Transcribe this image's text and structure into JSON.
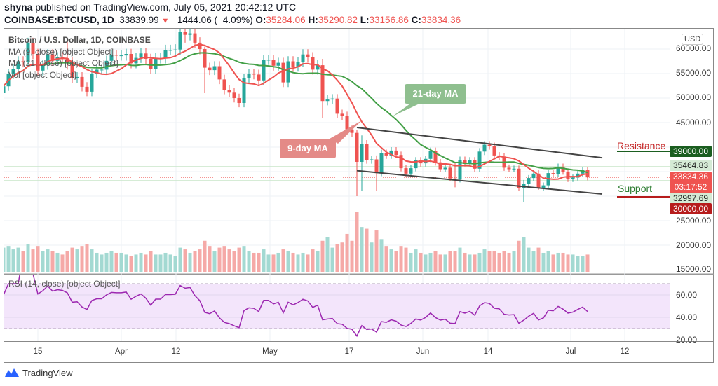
{
  "header": {
    "author": "shyna",
    "published": "published on TradingView.com, July 05, 2021 20:42:12 UTC",
    "symbol": "COINBASE:BTCUSD, 1D",
    "last": "33839.99",
    "change": "−1444.06 (−4.09%)",
    "o_label": "O:",
    "o": "35284.06",
    "h_label": "H:",
    "h": "35290.82",
    "l_label": "L:",
    "l": "33156.86",
    "c_label": "C:",
    "c": "33834.36"
  },
  "legend": {
    "title": "Bitcoin / U.S. Dollar, 1D, COINBASE",
    "ma9": "MA (9, close) [object Object]",
    "ma21": "MA (21, close) [object Object]",
    "vol": "Vol [object Object]",
    "rsi": "RSI (14, close) [object Object]"
  },
  "price_axis": {
    "unit": "USD",
    "ticks": [
      "60000.00",
      "55000.00",
      "50000.00",
      "45000.00",
      "25000.00",
      "20000.00",
      "15000.00"
    ],
    "resistance_tag": "39000.00",
    "upper_tag": "35464.83",
    "last_tag": "33834.36",
    "countdown": "03:17:52",
    "lower_tag": "32997.69",
    "support_tag": "30000.00"
  },
  "rsi_axis": {
    "ticks": [
      "60.00",
      "40.00",
      "20.00"
    ]
  },
  "time_axis": {
    "labels": [
      "15",
      "Apr",
      "12",
      "May",
      "17",
      "Jun",
      "14",
      "Jul",
      "12"
    ]
  },
  "annotations": {
    "resistance": "Resistance",
    "support": "Support",
    "ma21_callout": "21-day MA",
    "ma9_callout": "9-day MA"
  },
  "colors": {
    "up": "#26a69a",
    "down": "#ef5350",
    "ma9": "#ef5350",
    "ma21": "#43a047",
    "rsi": "#9c27b0",
    "resistance": "#1b5e20",
    "support": "#b71c1c"
  },
  "footer": {
    "brand": "TradingView"
  },
  "chart_data": {
    "type": "candlestick",
    "start_date": "2021-03-08",
    "first_open": 51000,
    "closes": [
      52400,
      54900,
      55900,
      57500,
      57300,
      61200,
      59000,
      55600,
      56800,
      58900,
      57600,
      58300,
      58100,
      57400,
      54100,
      54300,
      52300,
      51300,
      55000,
      55800,
      55800,
      57600,
      58800,
      58700,
      58700,
      59000,
      57100,
      58200,
      59100,
      58000,
      56000,
      58100,
      58100,
      59800,
      59800,
      59900,
      63500,
      62900,
      63200,
      61300,
      60000,
      56200,
      55700,
      56500,
      53800,
      51700,
      51100,
      50000,
      49000,
      54000,
      55000,
      54800,
      53600,
      57800,
      57800,
      56600,
      57200,
      53200,
      57500,
      56400,
      57400,
      58900,
      58300,
      55800,
      56700,
      49400,
      49700,
      49900,
      46800,
      46400,
      43600,
      42900,
      37000,
      40700,
      37300,
      37500,
      34700,
      38800,
      38300,
      39300,
      38400,
      35700,
      34600,
      35700,
      37300,
      36700,
      37600,
      39200,
      36900,
      35500,
      35800,
      33600,
      33400,
      37400,
      36700,
      37300,
      35600,
      39100,
      40500,
      40200,
      38300,
      38100,
      35800,
      35500,
      35600,
      31600,
      32500,
      33700,
      34600,
      31600,
      32200,
      34700,
      34500,
      36000,
      35000,
      33500,
      33800,
      34600,
      35300,
      33834
    ],
    "wick_overrides": {
      "13": [
        61800,
        55800
      ],
      "37": [
        64800,
        61300
      ],
      "41": [
        60500,
        51000
      ],
      "65": [
        58000,
        46000
      ],
      "72": [
        43500,
        30000
      ],
      "73": [
        42400,
        31000
      ],
      "76": [
        38300,
        31100
      ],
      "92": [
        36800,
        31800
      ],
      "106": [
        33300,
        28800
      ],
      "109": [
        35300,
        31300
      ]
    },
    "volume": [
      14,
      15,
      13,
      14,
      12,
      16,
      13,
      15,
      12,
      13,
      12,
      11,
      10,
      12,
      14,
      13,
      15,
      16,
      13,
      11,
      10,
      11,
      12,
      11,
      11,
      10,
      9,
      10,
      11,
      10,
      12,
      10,
      10,
      11,
      10,
      9,
      14,
      13,
      11,
      12,
      13,
      18,
      15,
      12,
      14,
      15,
      13,
      12,
      14,
      15,
      12,
      11,
      11,
      13,
      10,
      10,
      11,
      13,
      12,
      11,
      10,
      11,
      10,
      13,
      12,
      18,
      20,
      14,
      16,
      17,
      22,
      18,
      35,
      26,
      25,
      17,
      24,
      19,
      15,
      13,
      12,
      15,
      14,
      11,
      13,
      11,
      10,
      11,
      12,
      10,
      10,
      12,
      12,
      14,
      11,
      10,
      10,
      11,
      13,
      12,
      12,
      11,
      12,
      11,
      12,
      18,
      20,
      14,
      12,
      14,
      11,
      12,
      10,
      11,
      11,
      10,
      10,
      9,
      9,
      10
    ],
    "overlays": [
      "MA 9",
      "MA 21",
      "RSI 14"
    ],
    "price_range": [
      15000,
      64000
    ],
    "rsi_range": [
      20,
      75
    ],
    "trendlines": {
      "upper": [
        [
          44000,
          "2021-05-19"
        ],
        [
          38400,
          "2021-07-06"
        ]
      ],
      "lower": [
        [
          35200,
          "2021-05-19"
        ],
        [
          31000,
          "2021-07-06"
        ]
      ]
    },
    "levels": {
      "resistance": 39000,
      "support": 30000
    }
  }
}
